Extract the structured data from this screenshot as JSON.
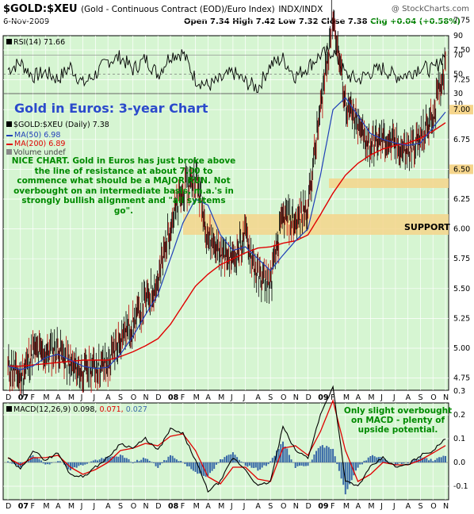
{
  "header": {
    "symbol": "$GOLD:$XEU",
    "description": "(Gold - Continuous Contract (EOD)/Euro Index)",
    "exchange": "INDX/INDX",
    "credit": "@ StockCharts.com",
    "date": "6-Nov-2009",
    "open": "Open 7.34",
    "high": "High 7.42",
    "low": "Low 7.32",
    "close": "Close 7.38",
    "change": "Chg +0.04 (+0.58%)"
  },
  "rsi_panel": {
    "label": "RSI(14) 71.66",
    "ticks": [
      "90",
      "70",
      "50",
      "30"
    ]
  },
  "price_panel": {
    "big_title": "Gold in Euros: 3-year Chart",
    "legend": {
      "symbol": "$GOLD:$XEU (Daily) 7.38",
      "ma50": "MA(50) 6.98",
      "ma200": "MA(200) 6.89",
      "volume": "Volume undef"
    },
    "annotation": "NICE CHART. Gold in Euros has just broke above the line of resistance at about 7.00 to commence what should be a MAJOR RUN. Not overbought on an intermediate basis, m.a.'s in strongly bullish alignment and \"all systems go\".",
    "support_label": "SUPPORT",
    "ticks": [
      "10",
      "7.75",
      "7.50",
      "7.25",
      "7.00",
      "6.75",
      "6.50",
      "6.25",
      "6.00",
      "5.75",
      "5.50",
      "5.25",
      "5.00",
      "4.75"
    ],
    "resistance_label": "7.00",
    "support_value_label": "6.50"
  },
  "month_axis": [
    "D",
    "07",
    "F",
    "M",
    "A",
    "M",
    "J",
    "J",
    "A",
    "S",
    "O",
    "N",
    "D",
    "08",
    "F",
    "M",
    "A",
    "M",
    "J",
    "J",
    "A",
    "S",
    "O",
    "N",
    "D",
    "09",
    "F",
    "M",
    "A",
    "M",
    "J",
    "J",
    "A",
    "S",
    "O",
    "N"
  ],
  "macd_panel": {
    "label_name": "MACD(12,26,9)",
    "label_macd": "0.098,",
    "label_signal": "0.071,",
    "label_hist": "0.027",
    "annotation": "Only slight overbought on MACD - plenty of upside potential.",
    "ticks": [
      "0.3",
      "0.2",
      "0.1",
      "0.0",
      "-0.1"
    ]
  },
  "colors": {
    "panel_bg": "#d6f5d2",
    "price": "#000000",
    "ma50": "#1f3fb8",
    "ma200": "#e00000",
    "highlight": "#f5d58c",
    "annotation": "#008a00",
    "title": "#2b4acb",
    "macd_line": "#000000",
    "signal_line": "#e00000",
    "histogram": "#3a6aa8"
  },
  "chart_data": [
    {
      "type": "line",
      "title": "RSI(14) 71.66",
      "x": [
        "Dec-06",
        "Jan-07",
        "Feb-07",
        "Mar-07",
        "Apr-07",
        "May-07",
        "Jun-07",
        "Jul-07",
        "Aug-07",
        "Sep-07",
        "Oct-07",
        "Nov-07",
        "Dec-07",
        "Jan-08",
        "Feb-08",
        "Mar-08",
        "Apr-08",
        "May-08",
        "Jun-08",
        "Jul-08",
        "Aug-08",
        "Sep-08",
        "Oct-08",
        "Nov-08",
        "Dec-08",
        "Jan-09",
        "Feb-09",
        "Mar-09",
        "Apr-09",
        "May-09",
        "Jun-09",
        "Jul-09",
        "Aug-09",
        "Sep-09",
        "Oct-09",
        "Nov-09"
      ],
      "series": [
        {
          "name": "RSI(14)",
          "values": [
            55,
            62,
            48,
            52,
            45,
            58,
            40,
            50,
            64,
            68,
            55,
            66,
            50,
            70,
            72,
            45,
            38,
            44,
            52,
            42,
            36,
            60,
            66,
            48,
            58,
            70,
            74,
            50,
            44,
            52,
            56,
            48,
            50,
            58,
            54,
            72
          ]
        }
      ],
      "ylim": [
        30,
        90
      ]
    },
    {
      "type": "line",
      "title": "$GOLD:$XEU (Daily) 7.38",
      "x": [
        "Dec-06",
        "Jan-07",
        "Feb-07",
        "Mar-07",
        "Apr-07",
        "May-07",
        "Jun-07",
        "Jul-07",
        "Aug-07",
        "Sep-07",
        "Oct-07",
        "Nov-07",
        "Dec-07",
        "Jan-08",
        "Feb-08",
        "Mar-08",
        "Apr-08",
        "May-08",
        "Jun-08",
        "Jul-08",
        "Aug-08",
        "Sep-08",
        "Oct-08",
        "Nov-08",
        "Dec-08",
        "Jan-09",
        "Feb-09",
        "Mar-09",
        "Apr-09",
        "May-09",
        "Jun-09",
        "Jul-09",
        "Aug-09",
        "Sep-09",
        "Oct-09",
        "Nov-09"
      ],
      "series": [
        {
          "name": "$GOLD:$XEU",
          "values": [
            4.85,
            4.75,
            4.98,
            4.95,
            5.0,
            4.85,
            4.8,
            4.85,
            4.85,
            5.1,
            5.2,
            5.4,
            5.55,
            6.05,
            6.3,
            6.45,
            5.95,
            5.8,
            5.75,
            5.95,
            5.6,
            5.55,
            6.1,
            6.05,
            6.2,
            7.0,
            7.8,
            7.05,
            6.85,
            6.7,
            6.75,
            6.7,
            6.65,
            6.75,
            6.95,
            7.38
          ]
        },
        {
          "name": "MA(50)",
          "values": [
            4.85,
            4.82,
            4.85,
            4.92,
            4.95,
            4.9,
            4.85,
            4.83,
            4.84,
            4.95,
            5.1,
            5.28,
            5.45,
            5.75,
            6.05,
            6.25,
            6.2,
            5.95,
            5.82,
            5.85,
            5.75,
            5.65,
            5.78,
            5.9,
            6.0,
            6.45,
            7.0,
            7.1,
            6.95,
            6.8,
            6.75,
            6.72,
            6.7,
            6.72,
            6.85,
            6.98
          ]
        },
        {
          "name": "MA(200)",
          "values": [
            4.85,
            4.85,
            4.86,
            4.87,
            4.88,
            4.89,
            4.9,
            4.9,
            4.9,
            4.93,
            4.97,
            5.02,
            5.08,
            5.2,
            5.36,
            5.52,
            5.62,
            5.7,
            5.75,
            5.8,
            5.84,
            5.85,
            5.88,
            5.9,
            5.95,
            6.12,
            6.3,
            6.45,
            6.55,
            6.62,
            6.67,
            6.7,
            6.72,
            6.76,
            6.82,
            6.89
          ]
        }
      ],
      "ylim": [
        4.6,
        8.0
      ]
    },
    {
      "type": "line",
      "title": "MACD(12,26,9) 0.098, 0.071, 0.027",
      "x": [
        "Dec-06",
        "Jan-07",
        "Feb-07",
        "Mar-07",
        "Apr-07",
        "May-07",
        "Jun-07",
        "Jul-07",
        "Aug-07",
        "Sep-07",
        "Oct-07",
        "Nov-07",
        "Dec-07",
        "Jan-08",
        "Feb-08",
        "Mar-08",
        "Apr-08",
        "May-08",
        "Jun-08",
        "Jul-08",
        "Aug-08",
        "Sep-08",
        "Oct-08",
        "Nov-08",
        "Dec-08",
        "Jan-09",
        "Feb-09",
        "Mar-09",
        "Apr-09",
        "May-09",
        "Jun-09",
        "Jul-09",
        "Aug-09",
        "Sep-09",
        "Oct-09",
        "Nov-09"
      ],
      "series": [
        {
          "name": "MACD",
          "values": [
            0.02,
            -0.03,
            0.05,
            0.01,
            0.04,
            -0.05,
            -0.06,
            -0.02,
            0.02,
            0.08,
            0.06,
            0.1,
            0.05,
            0.14,
            0.12,
            0.01,
            -0.12,
            -0.08,
            0.02,
            -0.03,
            -0.1,
            -0.08,
            0.15,
            0.05,
            0.02,
            0.2,
            0.32,
            -0.08,
            -0.1,
            -0.02,
            0.02,
            -0.02,
            -0.01,
            0.03,
            0.05,
            0.098
          ]
        },
        {
          "name": "Signal",
          "values": [
            0.02,
            -0.01,
            0.02,
            0.02,
            0.03,
            -0.02,
            -0.05,
            -0.03,
            0.0,
            0.05,
            0.06,
            0.08,
            0.07,
            0.11,
            0.12,
            0.05,
            -0.06,
            -0.09,
            -0.02,
            -0.02,
            -0.07,
            -0.08,
            0.06,
            0.07,
            0.03,
            0.13,
            0.26,
            0.05,
            -0.08,
            -0.05,
            0.0,
            -0.01,
            -0.01,
            0.01,
            0.04,
            0.071
          ]
        },
        {
          "name": "Histogram",
          "values": [
            0.0,
            -0.02,
            0.03,
            -0.01,
            0.01,
            -0.03,
            -0.01,
            0.01,
            0.02,
            0.03,
            0.0,
            0.02,
            -0.02,
            0.03,
            0.0,
            -0.04,
            -0.06,
            0.01,
            0.04,
            -0.01,
            -0.03,
            0.0,
            0.09,
            -0.02,
            -0.01,
            0.07,
            0.06,
            -0.13,
            -0.02,
            0.03,
            0.02,
            -0.01,
            0.0,
            0.02,
            0.01,
            0.027
          ]
        }
      ],
      "ylim": [
        -0.15,
        0.35
      ]
    }
  ]
}
